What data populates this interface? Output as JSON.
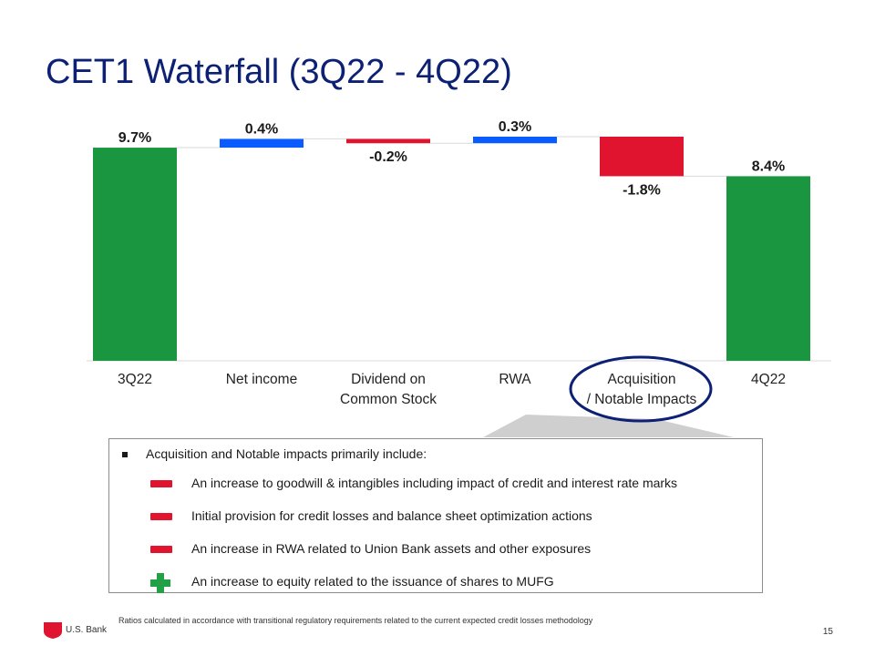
{
  "title": "CET1 Waterfall (3Q22 - 4Q22)",
  "chart_data": {
    "type": "waterfall",
    "title": "CET1 Waterfall (3Q22 - 4Q22)",
    "categories": [
      "3Q22",
      "Net income",
      "Dividend on\nCommon Stock",
      "RWA",
      "Acquisition\n/ Notable Impacts",
      "4Q22"
    ],
    "values": [
      9.7,
      0.4,
      -0.2,
      0.3,
      -1.8,
      8.4
    ],
    "labels": [
      "9.7%",
      "0.4%",
      "-0.2%",
      "0.3%",
      "-1.8%",
      "8.4%"
    ],
    "kinds": [
      "total",
      "increase",
      "decrease",
      "increase",
      "decrease",
      "total"
    ],
    "colors": {
      "total": "#1a9641",
      "increase": "#0a5cff",
      "decrease": "#e0142e"
    },
    "ylim": [
      0,
      10.5
    ],
    "highlighted_category": "Acquisition\n/ Notable Impacts"
  },
  "callout": {
    "intro": "Acquisition and Notable impacts primarily include:",
    "items": [
      {
        "symbol": "minus",
        "text": "An increase to goodwill & intangibles including impact of credit and interest rate marks"
      },
      {
        "symbol": "minus",
        "text": "Initial provision for credit losses and balance sheet optimization actions"
      },
      {
        "symbol": "minus",
        "text": "An increase in RWA related to Union Bank assets and other exposures"
      },
      {
        "symbol": "plus",
        "text": "An increase to equity related to the issuance of shares to MUFG"
      }
    ]
  },
  "footnote": "Ratios calculated in accordance with transitional regulatory requirements related to the current expected credit losses methodology",
  "page_number": "15",
  "logo_text": "U.S. Bank",
  "colors": {
    "title": "#0c2074",
    "highlight_ring": "#0c2074",
    "minus": "#e0142e",
    "plus": "#22a046",
    "logo": "#e0142e"
  }
}
